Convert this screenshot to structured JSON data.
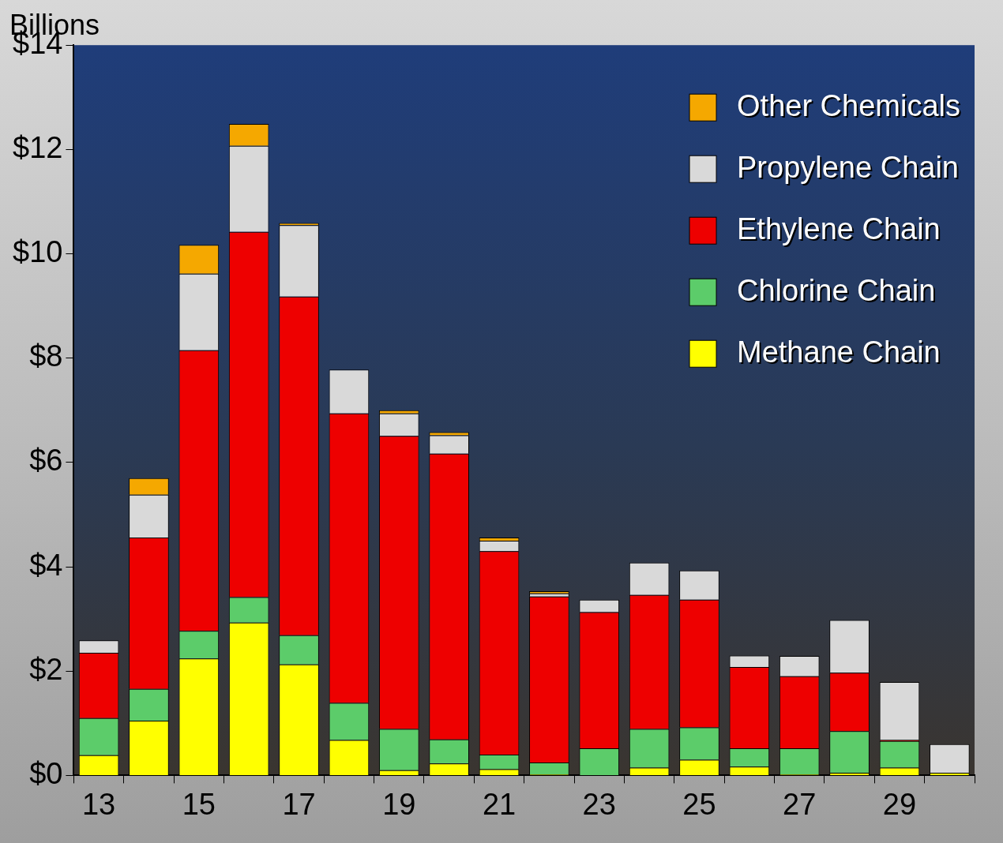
{
  "chart_data": {
    "type": "bar",
    "y_label": "Billions",
    "categories": [
      "13",
      null,
      "15",
      null,
      "17",
      null,
      "19",
      null,
      "21",
      null,
      "23",
      null,
      "25",
      null,
      "27",
      null,
      "29",
      null
    ],
    "stacked": true,
    "grid": false,
    "legend": "upper right",
    "ylim": [
      0,
      14
    ],
    "yticks": [
      {
        "value": 0,
        "label": "$0"
      },
      {
        "value": 2,
        "label": "$2"
      },
      {
        "value": 4,
        "label": "$4"
      },
      {
        "value": 6,
        "label": "$6"
      },
      {
        "value": 8,
        "label": "$8"
      },
      {
        "value": 10,
        "label": "$10"
      },
      {
        "value": 12,
        "label": "$12"
      },
      {
        "value": 14,
        "label": "$14"
      }
    ],
    "series": [
      {
        "name": "Methane Chain",
        "color": "#ffff00",
        "values": [
          0.39,
          1.05,
          2.24,
          2.93,
          2.13,
          0.68,
          0.1,
          0.23,
          0.12,
          0.02,
          0,
          0.15,
          0.3,
          0.17,
          0.02,
          0.05,
          0.15,
          0.05
        ]
      },
      {
        "name": "Chlorine Chain",
        "color": "#5ccc6a",
        "values": [
          0.71,
          0.61,
          0.53,
          0.49,
          0.56,
          0.71,
          0.79,
          0.46,
          0.28,
          0.23,
          0.52,
          0.74,
          0.62,
          0.35,
          0.5,
          0.8,
          0.51,
          0
        ]
      },
      {
        "name": "Ethylene Chain",
        "color": "#ee0000",
        "values": [
          1.25,
          2.9,
          5.38,
          7.0,
          6.49,
          5.55,
          5.62,
          5.48,
          3.9,
          3.18,
          2.61,
          2.57,
          2.45,
          1.56,
          1.38,
          1.12,
          0.02,
          0
        ]
      },
      {
        "name": "Propylene Chain",
        "color": "#d9d9d9",
        "values": [
          0.24,
          0.82,
          1.47,
          1.65,
          1.37,
          0.84,
          0.43,
          0.35,
          0.2,
          0.06,
          0.24,
          0.62,
          0.56,
          0.22,
          0.39,
          1.01,
          1.11,
          0.55
        ]
      },
      {
        "name": "Other Chemicals",
        "color": "#f5a800",
        "values": [
          0,
          0.32,
          0.55,
          0.42,
          0.04,
          0,
          0.06,
          0.06,
          0.06,
          0.04,
          0,
          0,
          0,
          0,
          0,
          0,
          0,
          0
        ]
      }
    ]
  }
}
